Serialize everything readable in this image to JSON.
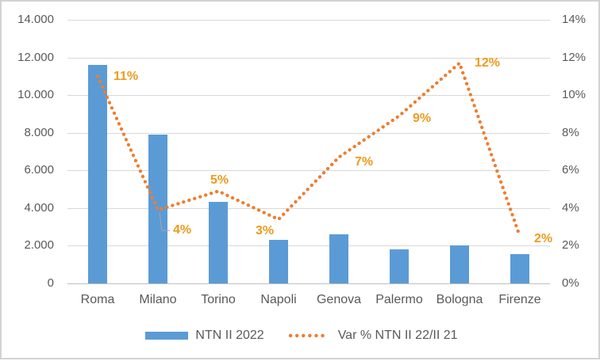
{
  "window": {
    "background": "#ffffff",
    "border_color": "#d2d2d2"
  },
  "chart_data": {
    "type": "bar+line combo",
    "title": "",
    "categories": [
      "Roma",
      "Milano",
      "Torino",
      "Napoli",
      "Genova",
      "Palermo",
      "Bologna",
      "Firenze"
    ],
    "series": [
      {
        "name": "NTN II 2022",
        "type": "bar",
        "axis": "left",
        "color": "#5b9bd5",
        "values": [
          11600,
          7900,
          4350,
          2300,
          2600,
          1800,
          2000,
          1550
        ]
      },
      {
        "name": "Var % NTN II 22/II 21",
        "type": "dotted-line",
        "axis": "right",
        "color": "#ed7d31",
        "label_color": "#ee9b1e",
        "values_pct": [
          11,
          4,
          5,
          3,
          7,
          9,
          12,
          2
        ],
        "data_labels": [
          "11%",
          "4%",
          "5%",
          "3%",
          "7%",
          "9%",
          "12%",
          "2%"
        ],
        "plot_pct": [
          11.0,
          3.9,
          4.9,
          3.4,
          6.7,
          8.9,
          11.7,
          2.5
        ]
      }
    ],
    "left_axis": {
      "range": [
        0,
        14000
      ],
      "ticks": [
        "0",
        "2.000",
        "4.000",
        "6.000",
        "8.000",
        "10.000",
        "12.000",
        "14.000"
      ]
    },
    "right_axis": {
      "range": [
        0,
        14
      ],
      "ticks": [
        "0%",
        "2%",
        "4%",
        "6%",
        "8%",
        "10%",
        "12%",
        "14%"
      ]
    },
    "grid": true,
    "gridline_color": "#d9d9d9",
    "axisline_color": "#bfbfbf",
    "legend_position": "bottom"
  }
}
